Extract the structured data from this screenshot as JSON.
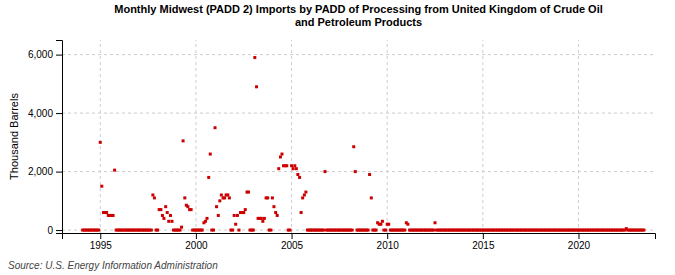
{
  "chart_data": {
    "type": "scatter",
    "title": "Monthly Midwest (PADD 2) Imports by PADD of Processing from United Kingdom of Crude Oil\nand Petroleum Products",
    "ylabel": "Thousand Barrels",
    "source": "Source: U.S. Energy Information Administration",
    "color": "#cc0000",
    "marker": "square",
    "grid": true,
    "xlim": [
      1993.0,
      2024.0
    ],
    "ylim": [
      -100,
      6500
    ],
    "xticks": [
      1995,
      2000,
      2005,
      2010,
      2015,
      2020
    ],
    "yticks": [
      0,
      {
        "value": 2000,
        "label": "2,000"
      },
      {
        "value": 4000,
        "label": "4,000"
      },
      {
        "value": 6000,
        "label": "6,000"
      }
    ],
    "x": [
      1994.08,
      1994.17,
      1994.25,
      1994.33,
      1994.42,
      1994.5,
      1994.58,
      1994.67,
      1994.75,
      1994.83,
      1994.92,
      1995.0,
      1995.08,
      1995.17,
      1995.25,
      1995.33,
      1995.42,
      1995.5,
      1995.58,
      1995.67,
      1995.75,
      1995.83,
      1995.92,
      1996.0,
      1996.08,
      1996.17,
      1996.25,
      1996.33,
      1996.42,
      1996.5,
      1996.58,
      1996.67,
      1996.75,
      1996.83,
      1996.92,
      1997.0,
      1997.08,
      1997.17,
      1997.25,
      1997.33,
      1997.42,
      1997.5,
      1997.58,
      1997.67,
      1997.75,
      1997.83,
      1997.92,
      1998.0,
      1998.08,
      1998.17,
      1998.25,
      1998.33,
      1998.42,
      1998.5,
      1998.58,
      1998.67,
      1998.75,
      1998.83,
      1998.92,
      1999.0,
      1999.08,
      1999.17,
      1999.25,
      1999.33,
      1999.42,
      1999.5,
      1999.58,
      1999.67,
      1999.75,
      1999.83,
      1999.92,
      2000.0,
      2000.08,
      2000.17,
      2000.25,
      2000.33,
      2000.42,
      2000.5,
      2000.58,
      2000.67,
      2000.75,
      2000.83,
      2000.92,
      2001.0,
      2001.08,
      2001.17,
      2001.25,
      2001.33,
      2001.42,
      2001.5,
      2001.58,
      2001.67,
      2001.75,
      2001.83,
      2001.92,
      2002.0,
      2002.08,
      2002.17,
      2002.25,
      2002.33,
      2002.42,
      2002.5,
      2002.58,
      2002.67,
      2002.75,
      2002.83,
      2002.92,
      2003.0,
      2003.08,
      2003.17,
      2003.25,
      2003.33,
      2003.42,
      2003.5,
      2003.58,
      2003.67,
      2003.75,
      2003.83,
      2003.92,
      2004.0,
      2004.08,
      2004.17,
      2004.25,
      2004.33,
      2004.42,
      2004.5,
      2004.58,
      2004.67,
      2004.75,
      2004.83,
      2004.92,
      2005.0,
      2005.08,
      2005.17,
      2005.25,
      2005.33,
      2005.42,
      2005.5,
      2005.58,
      2005.67,
      2005.75,
      2005.83,
      2005.92,
      2006.0,
      2006.08,
      2006.17,
      2006.25,
      2006.33,
      2006.42,
      2006.5,
      2006.58,
      2006.67,
      2006.75,
      2006.83,
      2006.92,
      2007.0,
      2007.08,
      2007.17,
      2007.25,
      2007.33,
      2007.42,
      2007.5,
      2007.58,
      2007.67,
      2007.75,
      2007.83,
      2007.92,
      2008.0,
      2008.08,
      2008.17,
      2008.25,
      2008.33,
      2008.42,
      2008.5,
      2008.58,
      2008.67,
      2008.75,
      2008.83,
      2008.92,
      2009.0,
      2009.08,
      2009.17,
      2009.25,
      2009.33,
      2009.42,
      2009.5,
      2009.58,
      2009.67,
      2009.75,
      2009.83,
      2009.92,
      2010.0,
      2010.08,
      2010.17,
      2010.25,
      2010.33,
      2010.42,
      2010.5,
      2010.58,
      2010.67,
      2010.75,
      2010.83,
      2010.92,
      2011.0,
      2011.08,
      2011.17,
      2011.25,
      2011.33,
      2011.42,
      2011.5,
      2011.58,
      2011.67,
      2011.75,
      2011.83,
      2011.92,
      2012.0,
      2012.08,
      2012.17,
      2012.25,
      2012.33,
      2012.42,
      2012.5,
      2012.58,
      2012.67,
      2012.75,
      2012.83,
      2012.92,
      2013.0,
      2013.08,
      2013.17,
      2013.25,
      2013.33,
      2013.42,
      2013.5,
      2013.58,
      2013.67,
      2013.75,
      2013.83,
      2013.92,
      2014.0,
      2014.08,
      2014.17,
      2014.25,
      2014.33,
      2014.42,
      2014.5,
      2014.58,
      2014.67,
      2014.75,
      2014.83,
      2014.92,
      2015.0,
      2015.08,
      2015.17,
      2015.25,
      2015.33,
      2015.42,
      2015.5,
      2015.58,
      2015.67,
      2015.75,
      2015.83,
      2015.92,
      2016.0,
      2016.08,
      2016.17,
      2016.25,
      2016.33,
      2016.42,
      2016.5,
      2016.58,
      2016.67,
      2016.75,
      2016.83,
      2016.92,
      2017.0,
      2017.08,
      2017.17,
      2017.25,
      2017.33,
      2017.42,
      2017.5,
      2017.58,
      2017.67,
      2017.75,
      2017.83,
      2017.92,
      2018.0,
      2018.08,
      2018.17,
      2018.25,
      2018.33,
      2018.42,
      2018.5,
      2018.58,
      2018.67,
      2018.75,
      2018.83,
      2018.92,
      2019.0,
      2019.08,
      2019.17,
      2019.25,
      2019.33,
      2019.42,
      2019.5,
      2019.58,
      2019.67,
      2019.75,
      2019.83,
      2019.92,
      2020.0,
      2020.08,
      2020.17,
      2020.25,
      2020.33,
      2020.42,
      2020.5,
      2020.58,
      2020.67,
      2020.75,
      2020.83,
      2020.92,
      2021.0,
      2021.08,
      2021.17,
      2021.25,
      2021.33,
      2021.42,
      2021.5,
      2021.58,
      2021.67,
      2021.75,
      2021.83,
      2021.92,
      2022.0,
      2022.08,
      2022.17,
      2022.25,
      2022.33,
      2022.42,
      2022.5,
      2022.58,
      2022.67,
      2022.75,
      2022.83,
      2022.92,
      2023.0,
      2023.08,
      2023.17,
      2023.25,
      2023.33,
      2023.42
    ],
    "values": [
      0,
      0,
      0,
      0,
      0,
      0,
      0,
      0,
      0,
      0,
      0,
      3000,
      1500,
      600,
      600,
      600,
      500,
      500,
      500,
      500,
      2050,
      0,
      0,
      0,
      0,
      0,
      0,
      0,
      0,
      0,
      0,
      0,
      0,
      0,
      0,
      0,
      0,
      0,
      0,
      0,
      0,
      0,
      0,
      0,
      1200,
      1100,
      0,
      0,
      700,
      700,
      500,
      400,
      800,
      600,
      300,
      500,
      300,
      0,
      0,
      0,
      0,
      0,
      100,
      3050,
      1100,
      850,
      800,
      700,
      700,
      0,
      0,
      0,
      0,
      0,
      0,
      0,
      250,
      300,
      400,
      1800,
      2600,
      0,
      0,
      3500,
      800,
      500,
      1000,
      1200,
      1100,
      1100,
      1200,
      1200,
      1100,
      0,
      0,
      500,
      200,
      500,
      0,
      600,
      600,
      600,
      700,
      1300,
      1300,
      0,
      0,
      0,
      5900,
      4900,
      400,
      400,
      400,
      300,
      400,
      1100,
      1100,
      0,
      0,
      1100,
      800,
      600,
      500,
      2100,
      2500,
      2600,
      2200,
      2200,
      2200,
      0,
      0,
      2200,
      2100,
      2200,
      2100,
      1900,
      1800,
      600,
      1100,
      1200,
      1300,
      0,
      0,
      0,
      0,
      0,
      0,
      0,
      0,
      0,
      0,
      0,
      2000,
      0,
      0,
      0,
      0,
      0,
      0,
      0,
      0,
      0,
      0,
      0,
      0,
      0,
      0,
      0,
      0,
      0,
      2850,
      2000,
      0,
      0,
      0,
      0,
      0,
      0,
      0,
      0,
      1900,
      1100,
      0,
      0,
      0,
      250,
      200,
      200,
      300,
      0,
      0,
      200,
      200,
      0,
      0,
      0,
      0,
      0,
      0,
      0,
      0,
      0,
      0,
      250,
      200,
      0,
      0,
      0,
      0,
      0,
      0,
      0,
      0,
      0,
      0,
      0,
      0,
      0,
      0,
      0,
      0,
      250,
      0,
      0,
      0,
      0,
      0,
      0,
      0,
      0,
      0,
      0,
      0,
      0,
      0,
      0,
      0,
      0,
      0,
      0,
      0,
      0,
      0,
      0,
      0,
      0,
      0,
      0,
      0,
      0,
      0,
      0,
      0,
      0,
      0,
      0,
      0,
      0,
      0,
      0,
      0,
      0,
      0,
      0,
      0,
      0,
      0,
      0,
      0,
      0,
      0,
      0,
      0,
      0,
      0,
      0,
      0,
      0,
      0,
      0,
      0,
      0,
      0,
      0,
      0,
      0,
      0,
      0,
      0,
      0,
      0,
      0,
      0,
      0,
      0,
      0,
      0,
      0,
      0,
      0,
      0,
      0,
      0,
      0,
      0,
      0,
      0,
      0,
      0,
      0,
      0,
      0,
      0,
      0,
      0,
      0,
      0,
      0,
      0,
      0,
      0,
      0,
      0,
      0,
      0,
      0,
      0,
      0,
      0,
      0,
      0,
      0,
      0,
      0,
      0,
      0,
      0,
      0,
      0,
      0,
      0,
      50,
      0,
      0,
      0,
      0,
      0,
      0,
      0,
      0,
      0,
      0,
      0
    ]
  }
}
